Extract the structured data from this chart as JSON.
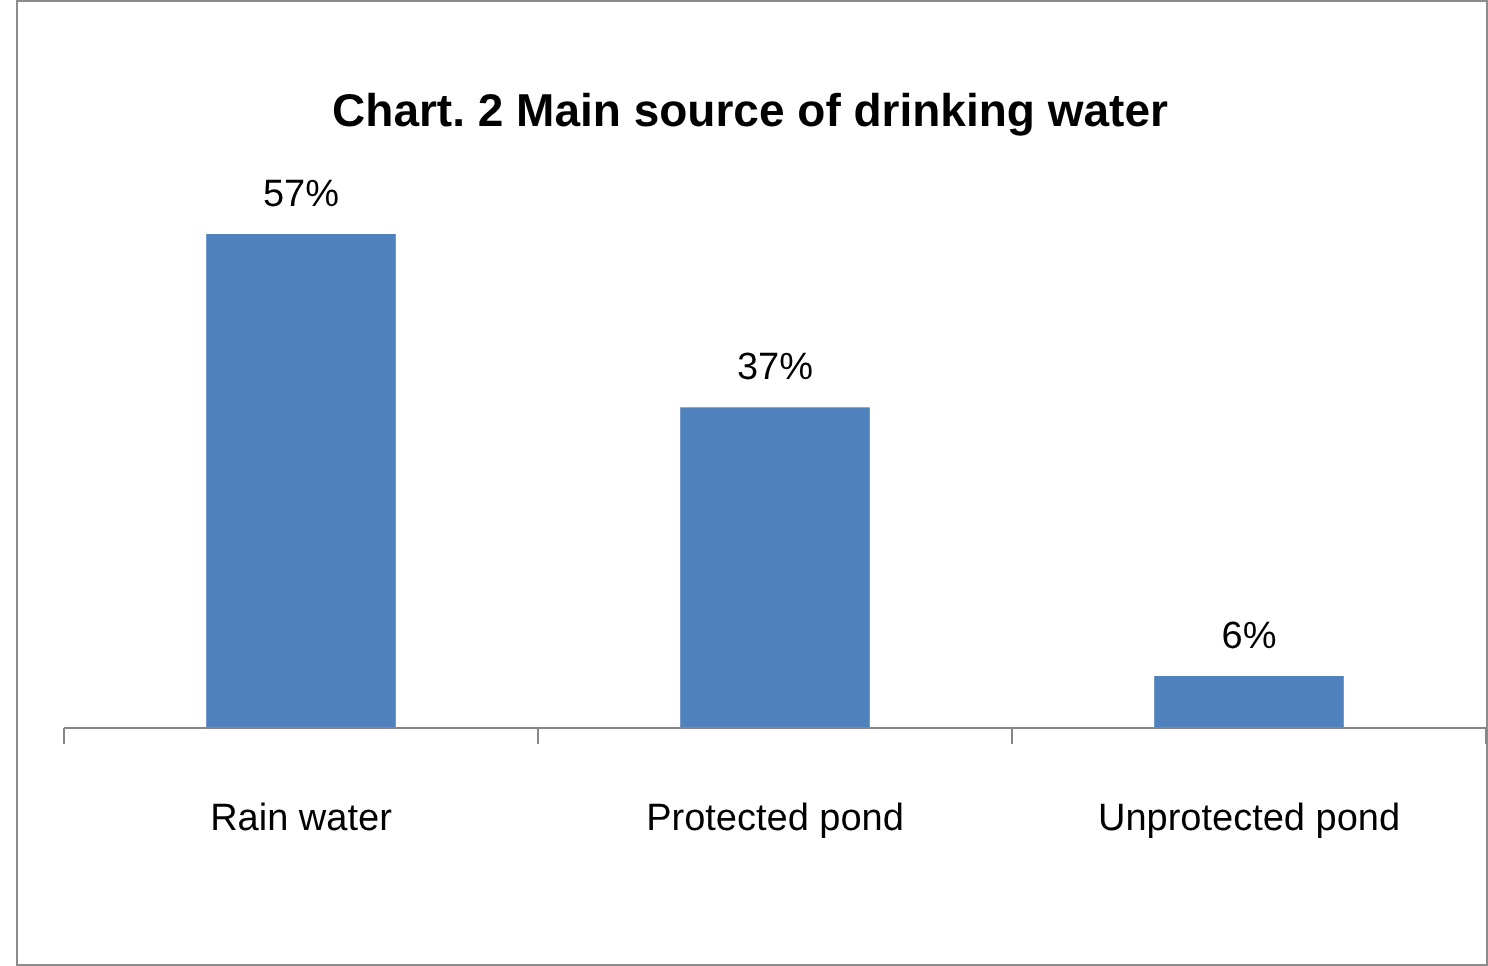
{
  "chart_data": {
    "type": "bar",
    "title": "Chart. 2 Main source of drinking water",
    "categories": [
      "Rain water",
      "Protected pond",
      "Unprotected pond"
    ],
    "values": [
      57,
      37,
      6
    ],
    "color": "#4f81bd",
    "value_labels": [
      "57%",
      "37%",
      "6%"
    ]
  }
}
